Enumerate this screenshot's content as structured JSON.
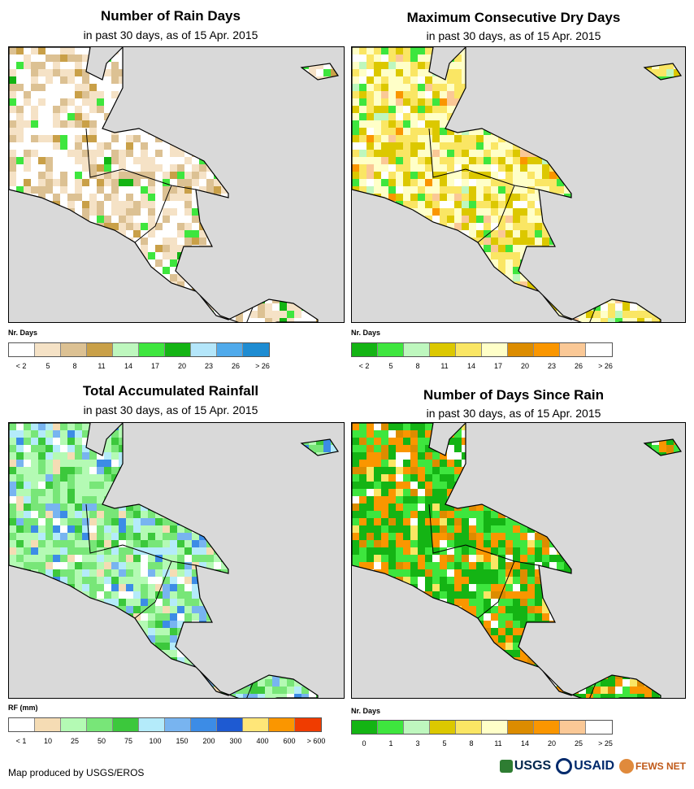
{
  "panels": [
    {
      "title": "Number of Rain Days",
      "subtitle": "in past 30 days, as of 15 Apr. 2015",
      "legend_label": "Nr. Days",
      "legend_colors": [
        "#ffffff",
        "#f5e2c6",
        "#dcc193",
        "#c9a048",
        "#bef7be",
        "#3ee63e",
        "#14b414",
        "#b4e6fa",
        "#50aaeb",
        "#1e8cd2"
      ],
      "tick_labels": [
        "< 2",
        "5",
        "8",
        "11",
        "14",
        "17",
        "20",
        "23",
        "26",
        "> 26"
      ],
      "map_palette": [
        "#ffffff",
        "#f5e2c6",
        "#dcc193",
        "#c9a048",
        "#3ee63e",
        "#14b414"
      ],
      "map_weights": [
        0.38,
        0.32,
        0.2,
        0.05,
        0.03,
        0.02
      ]
    },
    {
      "title": "Maximum Consecutive Dry Days",
      "subtitle": "in past 30 days, as of 15 Apr. 2015",
      "legend_label": "Nr. Days",
      "legend_colors": [
        "#14b414",
        "#3ee63e",
        "#bef7be",
        "#dcc800",
        "#fae664",
        "#ffffc8",
        "#dc8c00",
        "#fa9600",
        "#fac896",
        "#ffffff"
      ],
      "tick_labels": [
        "< 2",
        "5",
        "8",
        "11",
        "14",
        "17",
        "20",
        "23",
        "26",
        "> 26"
      ],
      "map_palette": [
        "#ffffc8",
        "#fae664",
        "#dcc800",
        "#fac896",
        "#3ee63e",
        "#bef7be",
        "#ffffff",
        "#fa9600"
      ],
      "map_weights": [
        0.33,
        0.28,
        0.18,
        0.05,
        0.06,
        0.03,
        0.05,
        0.02
      ]
    },
    {
      "title": "Total Accumulated Rainfall",
      "subtitle": "in past 30 days, as of 15 Apr. 2015",
      "legend_label": "RF (mm)",
      "legend_colors": [
        "#ffffff",
        "#f5dcb4",
        "#b4fab4",
        "#78e678",
        "#3cc83c",
        "#b4ebfa",
        "#78b4f0",
        "#3c8ce6",
        "#1e5ad2",
        "#ffe678",
        "#fa9600",
        "#f03c00"
      ],
      "tick_labels": [
        "< 1",
        "10",
        "25",
        "50",
        "75",
        "100",
        "150",
        "200",
        "300",
        "400",
        "600",
        "> 600"
      ],
      "map_palette": [
        "#b4fab4",
        "#78e678",
        "#3cc83c",
        "#b4ebfa",
        "#78b4f0",
        "#3c8ce6",
        "#ffffff",
        "#f5dcb4"
      ],
      "map_weights": [
        0.3,
        0.25,
        0.1,
        0.1,
        0.08,
        0.05,
        0.06,
        0.06
      ]
    },
    {
      "title": "Number of Days Since Rain",
      "subtitle": "in past 30 days, as of 15 Apr. 2015",
      "legend_label": "Nr. Days",
      "legend_colors": [
        "#14b414",
        "#3ee63e",
        "#bef7be",
        "#dcc800",
        "#fae664",
        "#ffffc8",
        "#dc8c00",
        "#fa9600",
        "#fac896",
        "#ffffff"
      ],
      "tick_labels": [
        "0",
        "1",
        "3",
        "5",
        "8",
        "11",
        "14",
        "20",
        "25",
        "> 25"
      ],
      "map_palette": [
        "#14b414",
        "#3ee63e",
        "#fa9600",
        "#dc8c00",
        "#ffffff",
        "#fae664"
      ],
      "map_weights": [
        0.3,
        0.25,
        0.22,
        0.1,
        0.08,
        0.05
      ]
    }
  ],
  "credit": "Map produced by USGS/EROS",
  "logos": {
    "usgs": "USGS",
    "usaid": "USAID",
    "fews": "FEWS NET"
  },
  "colors": {
    "ocean": "#d9d9d9",
    "border": "#000000"
  }
}
